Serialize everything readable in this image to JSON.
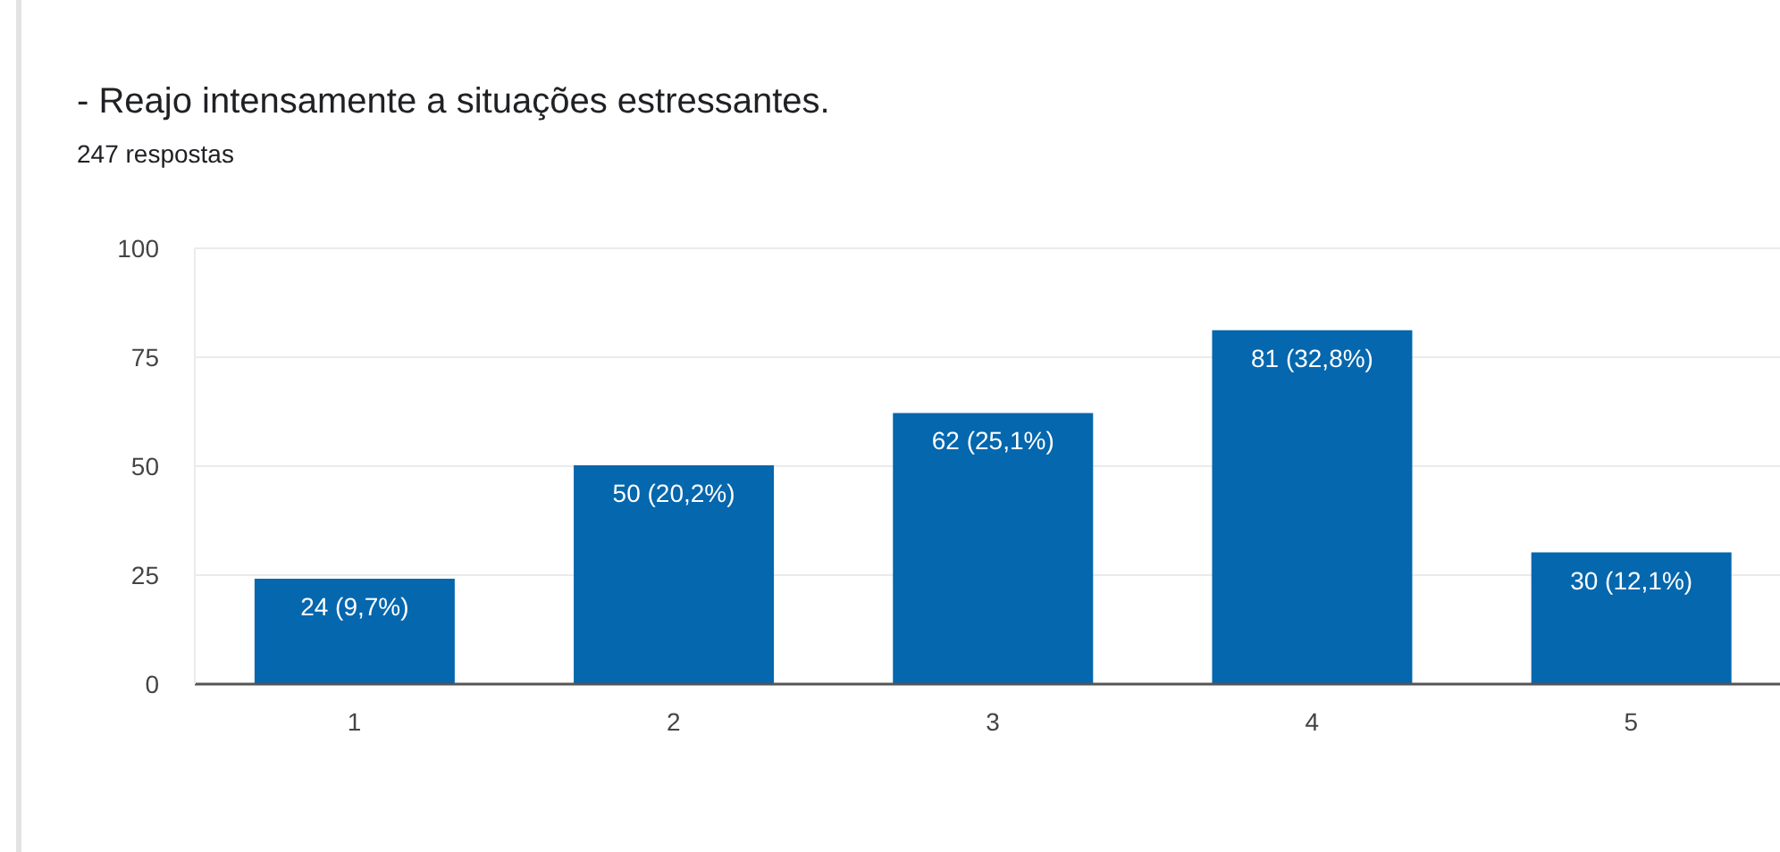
{
  "chart_data": {
    "type": "bar",
    "title": "- Reajo intensamente a situações estressantes.",
    "subtitle": "247 respostas",
    "categories": [
      "1",
      "2",
      "3",
      "4",
      "5"
    ],
    "values": [
      24,
      50,
      62,
      81,
      30
    ],
    "color": "#0567ae",
    "value_labels": [
      "24 (9,7%)",
      "50 (20,2%)",
      "62 (25,1%)",
      "81 (32,8%)",
      "30 (12,1%)"
    ],
    "ylim": [
      0,
      100
    ],
    "yticks": [
      0,
      25,
      50,
      75,
      100
    ],
    "grid": "y"
  }
}
